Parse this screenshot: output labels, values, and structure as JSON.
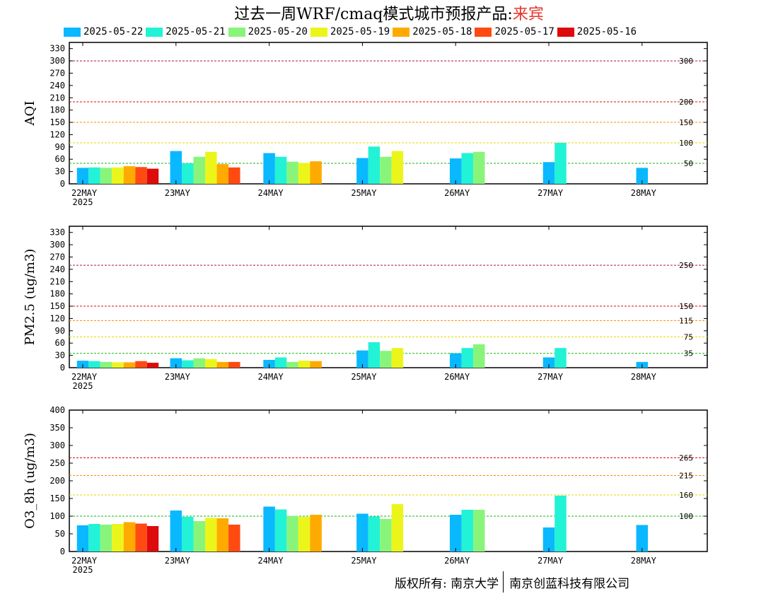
{
  "header": {
    "title": "过去一周WRF/cmaq模式城市预报产品:",
    "city": "来宾"
  },
  "colors": {
    "2025-05-22": "#0ab8ff",
    "2025-05-21": "#22f2d6",
    "2025-05-20": "#88f57a",
    "2025-05-19": "#ecf51a",
    "2025-05-18": "#ffaa00",
    "2025-05-17": "#ff4a12",
    "2025-05-16": "#dd0b0b"
  },
  "legend": [
    "2025-05-22",
    "2025-05-21",
    "2025-05-20",
    "2025-05-19",
    "2025-05-18",
    "2025-05-17",
    "2025-05-16"
  ],
  "footer": {
    "left": "版权所有: 南京大学",
    "right": "南京创蓝科技有限公司"
  },
  "chart_data": [
    {
      "type": "bar",
      "ylabel": "AQI",
      "ylim": [
        0,
        345
      ],
      "yticks": [
        0,
        30,
        60,
        90,
        120,
        150,
        180,
        210,
        240,
        270,
        300,
        330
      ],
      "categories": [
        "22MAY",
        "23MAY",
        "24MAY",
        "25MAY",
        "26MAY",
        "27MAY",
        "28MAY"
      ],
      "year_label": "2025",
      "thresholds": [
        {
          "value": 300,
          "label": "300",
          "color": "#aa1155"
        },
        {
          "value": 200,
          "label": "200",
          "color": "#dd0b0b"
        },
        {
          "value": 150,
          "label": "150",
          "color": "#ff8800"
        },
        {
          "value": 100,
          "label": "100",
          "color": "#dddd00"
        },
        {
          "value": 50,
          "label": "50",
          "color": "#11bb11"
        }
      ],
      "series": [
        {
          "name": "2025-05-22",
          "values": [
            39,
            80,
            75,
            63,
            62,
            53,
            39
          ]
        },
        {
          "name": "2025-05-21",
          "values": [
            40,
            50,
            66,
            91,
            75,
            100,
            null
          ]
        },
        {
          "name": "2025-05-20",
          "values": [
            39,
            66,
            54,
            66,
            78,
            null,
            null
          ]
        },
        {
          "name": "2025-05-19",
          "values": [
            40,
            78,
            51,
            80,
            null,
            null,
            null
          ]
        },
        {
          "name": "2025-05-18",
          "values": [
            43,
            48,
            55,
            null,
            null,
            null,
            null
          ]
        },
        {
          "name": "2025-05-17",
          "values": [
            41,
            40,
            null,
            null,
            null,
            null,
            null
          ]
        },
        {
          "name": "2025-05-16",
          "values": [
            37,
            null,
            null,
            null,
            null,
            null,
            null
          ]
        }
      ]
    },
    {
      "type": "bar",
      "ylabel": "PM2.5 (ug/m3)",
      "ylim": [
        0,
        345
      ],
      "yticks": [
        0,
        30,
        60,
        90,
        120,
        150,
        180,
        210,
        240,
        270,
        300,
        330
      ],
      "categories": [
        "22MAY",
        "23MAY",
        "24MAY",
        "25MAY",
        "26MAY",
        "27MAY",
        "28MAY"
      ],
      "year_label": "2025",
      "thresholds": [
        {
          "value": 250,
          "label": "250",
          "color": "#aa1155"
        },
        {
          "value": 150,
          "label": "150",
          "color": "#dd0b0b"
        },
        {
          "value": 115,
          "label": "115",
          "color": "#ff8800"
        },
        {
          "value": 75,
          "label": "75",
          "color": "#dddd00"
        },
        {
          "value": 35,
          "label": "35",
          "color": "#11bb11"
        }
      ],
      "series": [
        {
          "name": "2025-05-22",
          "values": [
            17,
            23,
            19,
            42,
            35,
            25,
            14
          ]
        },
        {
          "name": "2025-05-21",
          "values": [
            16,
            18,
            25,
            62,
            48,
            48,
            null
          ]
        },
        {
          "name": "2025-05-20",
          "values": [
            14,
            23,
            14,
            41,
            57,
            null,
            null
          ]
        },
        {
          "name": "2025-05-19",
          "values": [
            13,
            21,
            17,
            48,
            null,
            null,
            null
          ]
        },
        {
          "name": "2025-05-18",
          "values": [
            13,
            14,
            16,
            null,
            null,
            null,
            null
          ]
        },
        {
          "name": "2025-05-17",
          "values": [
            16,
            14,
            null,
            null,
            null,
            null,
            null
          ]
        },
        {
          "name": "2025-05-16",
          "values": [
            12,
            null,
            null,
            null,
            null,
            null,
            null
          ]
        }
      ]
    },
    {
      "type": "bar",
      "ylabel": "O3_8h (ug/m3)",
      "ylim": [
        0,
        400
      ],
      "yticks": [
        0,
        50,
        100,
        150,
        200,
        250,
        300,
        350,
        400
      ],
      "categories": [
        "22MAY",
        "23MAY",
        "24MAY",
        "25MAY",
        "26MAY",
        "27MAY",
        "28MAY"
      ],
      "year_label": "2025",
      "thresholds": [
        {
          "value": 265,
          "label": "265",
          "color": "#dd0b0b"
        },
        {
          "value": 215,
          "label": "215",
          "color": "#ff8800"
        },
        {
          "value": 160,
          "label": "160",
          "color": "#dddd00"
        },
        {
          "value": 100,
          "label": "100",
          "color": "#11bb11"
        }
      ],
      "series": [
        {
          "name": "2025-05-22",
          "values": [
            74,
            116,
            127,
            107,
            104,
            68,
            75
          ]
        },
        {
          "name": "2025-05-21",
          "values": [
            78,
            98,
            119,
            99,
            118,
            158,
            null
          ]
        },
        {
          "name": "2025-05-20",
          "values": [
            76,
            86,
            101,
            92,
            118,
            null,
            null
          ]
        },
        {
          "name": "2025-05-19",
          "values": [
            78,
            95,
            98,
            134,
            null,
            null,
            null
          ]
        },
        {
          "name": "2025-05-18",
          "values": [
            83,
            94,
            104,
            null,
            null,
            null,
            null
          ]
        },
        {
          "name": "2025-05-17",
          "values": [
            79,
            76,
            null,
            null,
            null,
            null,
            null
          ]
        },
        {
          "name": "2025-05-16",
          "values": [
            72,
            null,
            null,
            null,
            null,
            null,
            null
          ]
        }
      ]
    }
  ]
}
